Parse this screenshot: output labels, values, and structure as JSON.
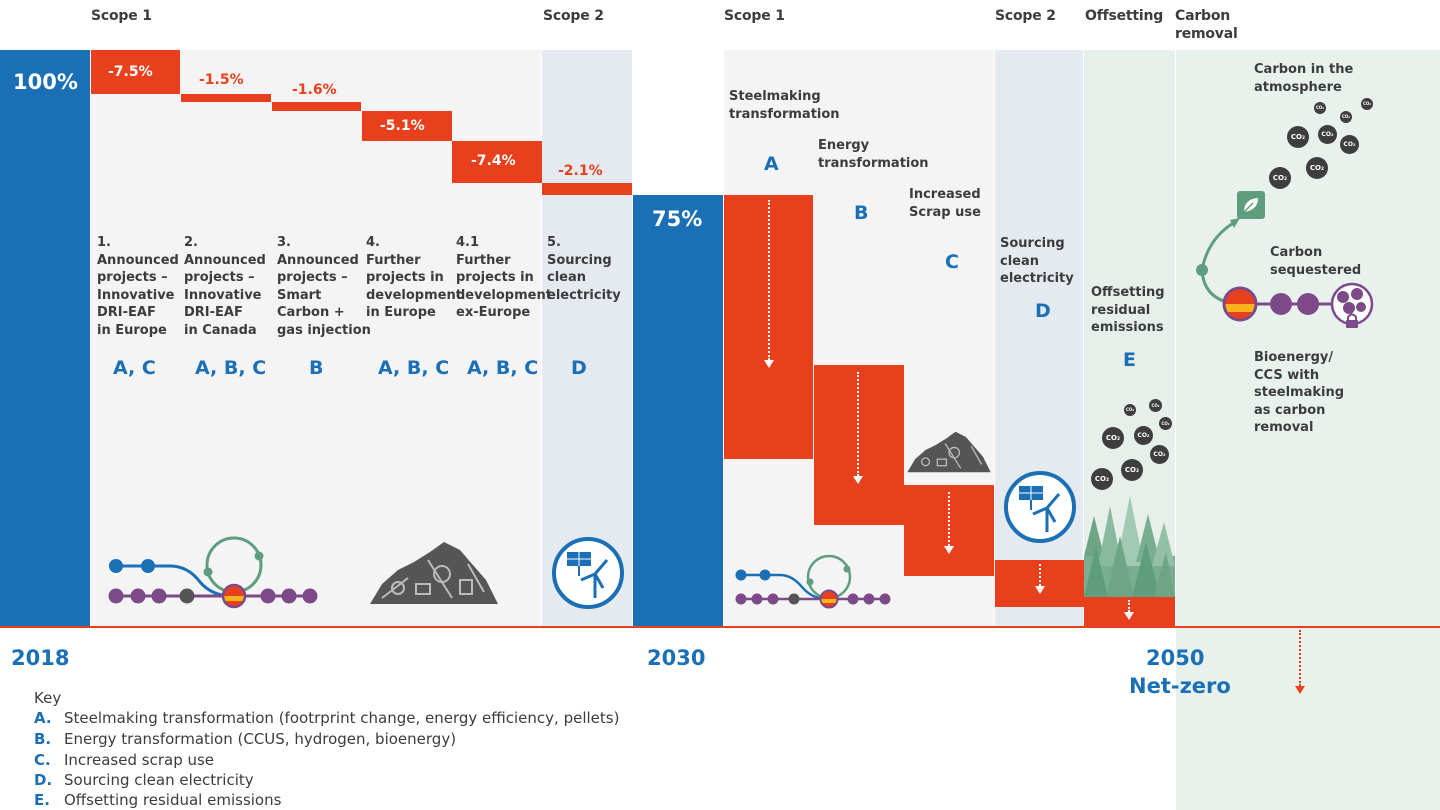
{
  "scopes": {
    "s1_left": "Scope 1",
    "s2_left": "Scope 2",
    "s1_right": "Scope 1",
    "s2_right": "Scope 2",
    "offsetting": "Offsetting",
    "carbon_removal_l1": "Carbon",
    "carbon_removal_l2": "removal"
  },
  "start": {
    "pct": "100%",
    "year": "2018"
  },
  "mid": {
    "pct": "75%",
    "year": "2030"
  },
  "end": {
    "year": "2050",
    "label": "Net-zero"
  },
  "steps": [
    {
      "pct": "-7.5%",
      "lines": [
        "1.",
        "Announced",
        "projects –",
        "Innovative",
        "DRI-EAF",
        "in Europe"
      ],
      "letters": "A, C"
    },
    {
      "pct": "-1.5%",
      "lines": [
        "2.",
        "Announced",
        "projects –",
        "Innovative",
        "DRI-EAF",
        "in Canada"
      ],
      "letters": "A, B, C"
    },
    {
      "pct": "-1.6%",
      "lines": [
        "3.",
        "Announced",
        "projects –",
        "Smart",
        "Carbon +",
        "gas injection"
      ],
      "letters": "B"
    },
    {
      "pct": "-5.1%",
      "lines": [
        "4.",
        "Further",
        "projects in",
        "development",
        "in Europe"
      ],
      "letters": "A, B, C"
    },
    {
      "pct": "-7.4%",
      "lines": [
        "4.1",
        "Further",
        "projects in",
        "development",
        "ex-Europe"
      ],
      "letters": "A, B, C"
    },
    {
      "pct": "-2.1%",
      "lines": [
        "5.",
        "Sourcing",
        "clean",
        "electricity"
      ],
      "letters": "D"
    }
  ],
  "levers": [
    {
      "letter": "A",
      "l1": "Steelmaking",
      "l2": "transformation"
    },
    {
      "letter": "B",
      "l1": "Energy",
      "l2": "transformation"
    },
    {
      "letter": "C",
      "l1": "Increased",
      "l2": "Scrap use"
    },
    {
      "letter": "D",
      "l1": "Sourcing",
      "l2": "clean",
      "l3": "electricity"
    },
    {
      "letter": "E",
      "l1": "Offsetting",
      "l2": "residual",
      "l3": "emissions"
    }
  ],
  "carbon_removal": {
    "atmos_l1": "Carbon in the",
    "atmos_l2": "atmosphere",
    "seq_l1": "Carbon",
    "seq_l2": "sequestered",
    "bio_lines": [
      "Bioenergy/",
      "CCS with",
      "steelmaking",
      "as carbon",
      "removal"
    ]
  },
  "co2_label": "CO₂",
  "key": {
    "title": "Key",
    "items": [
      {
        "letter": "A.",
        "text": "Steelmaking transformation (footrprint change, energy efficiency, pellets)"
      },
      {
        "letter": "B.",
        "text": "Energy transformation (CCUS, hydrogen, bioenergy)"
      },
      {
        "letter": "C.",
        "text": "Increased scrap use"
      },
      {
        "letter": "D.",
        "text": "Sourcing clean electricity"
      },
      {
        "letter": "E.",
        "text": "Offsetting residual emissions"
      }
    ]
  },
  "colors": {
    "blue": "#1a6fb5",
    "red": "#e8401c",
    "green": "#5e9e7e",
    "purple": "#7b4a87",
    "dark": "#3e3e3e"
  },
  "icons": [
    "rail-network-icon",
    "scrap-pile-icon",
    "solar-wind-icon",
    "leaf-icon",
    "forest-icon",
    "lock-icon"
  ]
}
